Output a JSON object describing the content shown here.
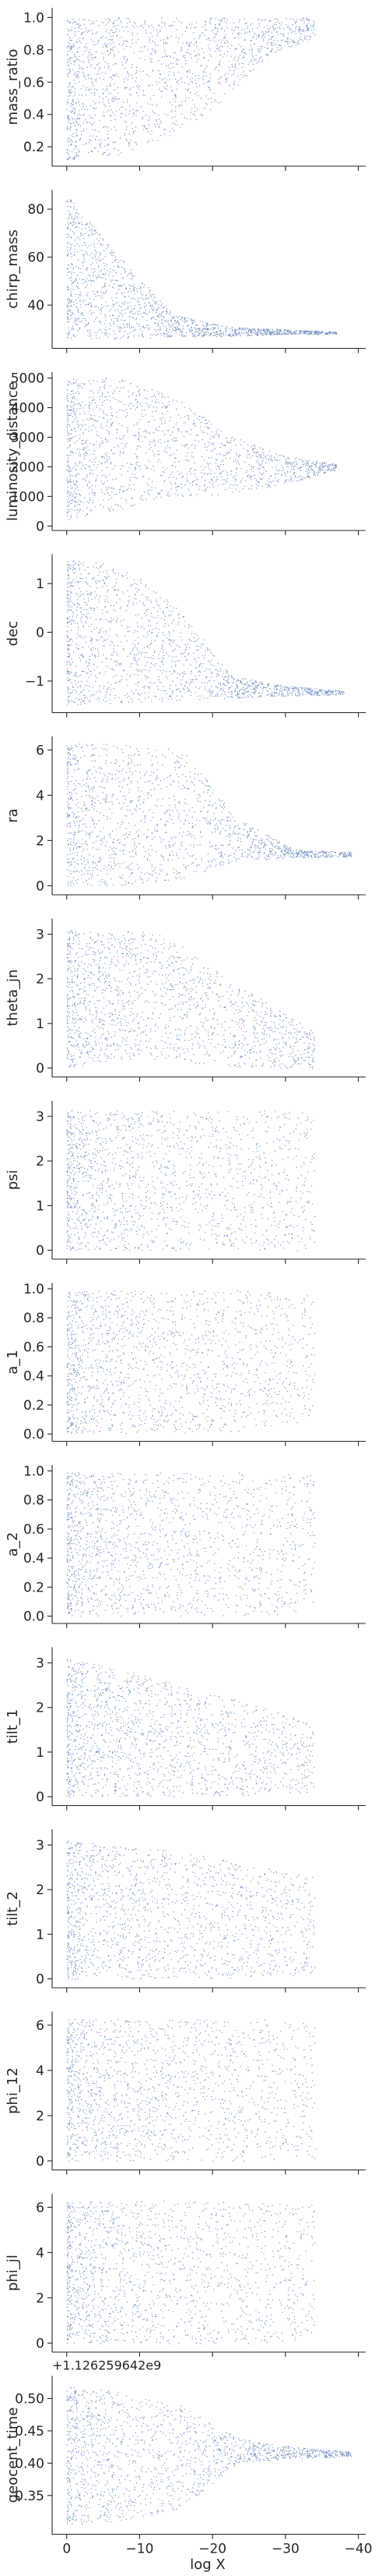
{
  "figure": {
    "xlabel": "log X",
    "xlim": [
      2,
      -41
    ],
    "xticks": [
      {
        "value": 0,
        "label": "0"
      },
      {
        "value": -10,
        "label": "−10"
      },
      {
        "value": -20,
        "label": "−20"
      },
      {
        "value": -30,
        "label": "−30"
      },
      {
        "value": -40,
        "label": "−40"
      }
    ],
    "point_color": "#4c72b0"
  },
  "chart_data": [
    {
      "type": "scatter",
      "ylabel": "mass_ratio",
      "ylim": [
        0.08,
        1.06
      ],
      "grid": false,
      "yticks": [
        {
          "value": 0.2,
          "label": "0.2"
        },
        {
          "value": 0.4,
          "label": "0.4"
        },
        {
          "value": 0.6,
          "label": "0.6"
        },
        {
          "value": 0.8,
          "label": "0.8"
        },
        {
          "value": 1.0,
          "label": "1.0"
        }
      ],
      "shape": {
        "xmin": -34,
        "lower": [
          0.12,
          0.15,
          0.25,
          0.45,
          0.75,
          0.88
        ],
        "upper": [
          1.0,
          1.0,
          1.0,
          1.0,
          1.0,
          1.0
        ]
      }
    },
    {
      "type": "scatter",
      "ylabel": "chirp_mass",
      "ylim": [
        22,
        88
      ],
      "grid": false,
      "yticks": [
        {
          "value": 40,
          "label": "40"
        },
        {
          "value": 60,
          "label": "60"
        },
        {
          "value": 80,
          "label": "80"
        }
      ],
      "shape": {
        "xmin": -37,
        "lower": [
          26,
          26,
          27,
          27,
          28,
          28
        ],
        "upper": [
          86,
          60,
          36,
          31,
          30,
          29
        ]
      }
    },
    {
      "type": "scatter",
      "ylabel": "luminosity_distance",
      "ylim": [
        -150,
        5200
      ],
      "grid": false,
      "yticks": [
        {
          "value": 0,
          "label": "0"
        },
        {
          "value": 1000,
          "label": "1000"
        },
        {
          "value": 2000,
          "label": "2000"
        },
        {
          "value": 3000,
          "label": "3000"
        },
        {
          "value": 4000,
          "label": "4000"
        },
        {
          "value": 5000,
          "label": "5000"
        }
      ],
      "shape": {
        "xmin": -37,
        "lower": [
          200,
          600,
          1000,
          1100,
          1400,
          1900
        ],
        "upper": [
          5000,
          5000,
          4400,
          3100,
          2400,
          2100
        ]
      }
    },
    {
      "type": "scatter",
      "ylabel": "dec",
      "ylim": [
        -1.65,
        1.6
      ],
      "grid": false,
      "yticks": [
        {
          "value": -1,
          "label": "−1"
        },
        {
          "value": 0,
          "label": "0"
        },
        {
          "value": 1,
          "label": "1"
        }
      ],
      "shape": {
        "xmin": -38,
        "lower": [
          -1.5,
          -1.45,
          -1.4,
          -1.35,
          -1.3,
          -1.28
        ],
        "upper": [
          1.5,
          1.4,
          0.5,
          -0.9,
          -1.1,
          -1.2
        ]
      }
    },
    {
      "type": "scatter",
      "ylabel": "ra",
      "ylim": [
        -0.4,
        6.6
      ],
      "grid": false,
      "yticks": [
        {
          "value": 0,
          "label": "0"
        },
        {
          "value": 2,
          "label": "2"
        },
        {
          "value": 4,
          "label": "4"
        },
        {
          "value": 6,
          "label": "6"
        }
      ],
      "shape": {
        "xmin": -39,
        "lower": [
          0.0,
          0.0,
          0.3,
          1.1,
          1.25,
          1.3
        ],
        "upper": [
          6.28,
          6.28,
          6.2,
          3.0,
          1.6,
          1.5
        ]
      }
    },
    {
      "type": "scatter",
      "ylabel": "theta_jn",
      "ylim": [
        -0.2,
        3.35
      ],
      "grid": false,
      "yticks": [
        {
          "value": 0,
          "label": "0"
        },
        {
          "value": 1,
          "label": "1"
        },
        {
          "value": 2,
          "label": "2"
        },
        {
          "value": 3,
          "label": "3"
        }
      ],
      "shape": {
        "xmin": -34,
        "lower": [
          0.0,
          0.2,
          0.2,
          0.05,
          0.0,
          0.0
        ],
        "upper": [
          3.1,
          3.1,
          3.0,
          2.2,
          1.5,
          0.8
        ]
      }
    },
    {
      "type": "scatter",
      "ylabel": "psi",
      "ylim": [
        -0.2,
        3.35
      ],
      "grid": false,
      "yticks": [
        {
          "value": 0,
          "label": "0"
        },
        {
          "value": 1,
          "label": "1"
        },
        {
          "value": 2,
          "label": "2"
        },
        {
          "value": 3,
          "label": "3"
        }
      ],
      "shape": {
        "xmin": -34,
        "lower": [
          0.0,
          0.0,
          0.0,
          0.0,
          0.0,
          0.0
        ],
        "upper": [
          3.14,
          3.14,
          3.14,
          3.14,
          3.14,
          3.14
        ]
      }
    },
    {
      "type": "scatter",
      "ylabel": "a_1",
      "ylim": [
        -0.05,
        1.04
      ],
      "grid": false,
      "yticks": [
        {
          "value": 0.0,
          "label": "0.0"
        },
        {
          "value": 0.2,
          "label": "0.2"
        },
        {
          "value": 0.4,
          "label": "0.4"
        },
        {
          "value": 0.6,
          "label": "0.6"
        },
        {
          "value": 0.8,
          "label": "0.8"
        },
        {
          "value": 1.0,
          "label": "1.0"
        }
      ],
      "shape": {
        "xmin": -34,
        "lower": [
          0.0,
          0.0,
          0.0,
          0.0,
          0.05,
          0.1
        ],
        "upper": [
          0.99,
          0.99,
          0.99,
          0.99,
          0.99,
          0.95
        ]
      }
    },
    {
      "type": "scatter",
      "ylabel": "a_2",
      "ylim": [
        -0.05,
        1.04
      ],
      "grid": false,
      "yticks": [
        {
          "value": 0.0,
          "label": "0.0"
        },
        {
          "value": 0.2,
          "label": "0.2"
        },
        {
          "value": 0.4,
          "label": "0.4"
        },
        {
          "value": 0.6,
          "label": "0.6"
        },
        {
          "value": 0.8,
          "label": "0.8"
        },
        {
          "value": 1.0,
          "label": "1.0"
        }
      ],
      "shape": {
        "xmin": -34,
        "lower": [
          0.0,
          0.0,
          0.0,
          0.0,
          0.0,
          0.05
        ],
        "upper": [
          0.99,
          0.99,
          0.99,
          0.99,
          0.99,
          0.97
        ]
      }
    },
    {
      "type": "scatter",
      "ylabel": "tilt_1",
      "ylim": [
        -0.2,
        3.35
      ],
      "grid": false,
      "yticks": [
        {
          "value": 0,
          "label": "0"
        },
        {
          "value": 1,
          "label": "1"
        },
        {
          "value": 2,
          "label": "2"
        },
        {
          "value": 3,
          "label": "3"
        }
      ],
      "shape": {
        "xmin": -34,
        "lower": [
          0.0,
          0.0,
          0.0,
          0.0,
          0.05,
          0.1
        ],
        "upper": [
          3.1,
          2.9,
          2.6,
          2.3,
          2.0,
          1.6
        ]
      }
    },
    {
      "type": "scatter",
      "ylabel": "tilt_2",
      "ylim": [
        -0.2,
        3.35
      ],
      "grid": false,
      "yticks": [
        {
          "value": 0,
          "label": "0"
        },
        {
          "value": 1,
          "label": "1"
        },
        {
          "value": 2,
          "label": "2"
        },
        {
          "value": 3,
          "label": "3"
        }
      ],
      "shape": {
        "xmin": -34,
        "lower": [
          0.0,
          0.0,
          0.0,
          0.0,
          0.05,
          0.1
        ],
        "upper": [
          3.1,
          3.0,
          2.9,
          2.7,
          2.5,
          2.3
        ]
      }
    },
    {
      "type": "scatter",
      "ylabel": "phi_12",
      "ylim": [
        -0.4,
        6.6
      ],
      "grid": false,
      "yticks": [
        {
          "value": 0,
          "label": "0"
        },
        {
          "value": 2,
          "label": "2"
        },
        {
          "value": 4,
          "label": "4"
        },
        {
          "value": 6,
          "label": "6"
        }
      ],
      "shape": {
        "xmin": -34,
        "lower": [
          0.0,
          0.0,
          0.0,
          0.0,
          0.0,
          0.1
        ],
        "upper": [
          6.28,
          6.28,
          6.28,
          6.28,
          6.28,
          6.2
        ]
      }
    },
    {
      "type": "scatter",
      "ylabel": "phi_jl",
      "ylim": [
        -0.4,
        6.6
      ],
      "grid": false,
      "yticks": [
        {
          "value": 0,
          "label": "0"
        },
        {
          "value": 2,
          "label": "2"
        },
        {
          "value": 4,
          "label": "4"
        },
        {
          "value": 6,
          "label": "6"
        }
      ],
      "shape": {
        "xmin": -34,
        "lower": [
          0.0,
          0.0,
          0.0,
          0.0,
          0.0,
          0.1
        ],
        "upper": [
          6.28,
          6.28,
          6.28,
          6.28,
          6.28,
          6.2
        ]
      }
    },
    {
      "type": "scatter",
      "ylabel": "geocent_time",
      "offset_label": "+1.126259642e9",
      "ylim": [
        0.29,
        0.535
      ],
      "grid": false,
      "yticks": [
        {
          "value": 0.35,
          "label": "0.35"
        },
        {
          "value": 0.4,
          "label": "0.40"
        },
        {
          "value": 0.45,
          "label": "0.45"
        },
        {
          "value": 0.5,
          "label": "0.50"
        }
      ],
      "shape": {
        "xmin": -39,
        "lower": [
          0.305,
          0.31,
          0.33,
          0.4,
          0.408,
          0.41
        ],
        "upper": [
          0.52,
          0.51,
          0.49,
          0.44,
          0.425,
          0.418
        ]
      }
    }
  ]
}
